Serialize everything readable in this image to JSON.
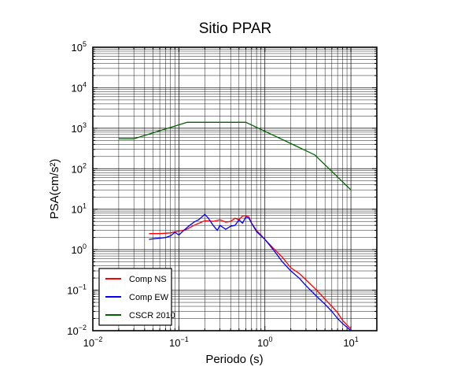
{
  "chart_data": {
    "type": "line",
    "title": "Sitio PPAR",
    "xlabel": "Periodo (s)",
    "ylabel": "PSA(cm/s²)",
    "xscale": "log",
    "yscale": "log",
    "xlim": [
      0.01,
      20
    ],
    "ylim": [
      0.01,
      100000
    ],
    "grid": true,
    "legend_position": "bottom-left",
    "x_ticks": [
      {
        "base": "10",
        "exp": "−2",
        "value": 0.01
      },
      {
        "base": "10",
        "exp": "−1",
        "value": 0.1
      },
      {
        "base": "10",
        "exp": "0",
        "value": 1
      },
      {
        "base": "10",
        "exp": "1",
        "value": 10
      }
    ],
    "y_ticks": [
      {
        "base": "10",
        "exp": "−2",
        "value": 0.01
      },
      {
        "base": "10",
        "exp": "−1",
        "value": 0.1
      },
      {
        "base": "10",
        "exp": "0",
        "value": 1
      },
      {
        "base": "10",
        "exp": "1",
        "value": 10
      },
      {
        "base": "10",
        "exp": "2",
        "value": 100
      },
      {
        "base": "10",
        "exp": "3",
        "value": 1000
      },
      {
        "base": "10",
        "exp": "4",
        "value": 10000
      },
      {
        "base": "10",
        "exp": "5",
        "value": 100000
      }
    ],
    "series": [
      {
        "name": "Comp NS",
        "color": "#ff0000",
        "x": [
          0.045,
          0.06,
          0.08,
          0.1,
          0.12,
          0.15,
          0.2,
          0.25,
          0.3,
          0.35,
          0.4,
          0.45,
          0.5,
          0.55,
          0.6,
          0.65,
          0.7,
          0.8,
          1.0,
          1.3,
          1.6,
          2.0,
          2.5,
          3.0,
          4.0,
          5.0,
          6.0,
          7.0,
          8.0,
          10.0
        ],
        "y": [
          2.5,
          2.5,
          2.6,
          2.9,
          3.1,
          4.0,
          5.2,
          5.0,
          5.5,
          4.8,
          5.0,
          6.0,
          5.5,
          6.8,
          7.0,
          6.5,
          4.5,
          3.0,
          1.8,
          1.0,
          0.65,
          0.36,
          0.26,
          0.18,
          0.1,
          0.06,
          0.04,
          0.028,
          0.018,
          0.011
        ]
      },
      {
        "name": "Comp EW",
        "color": "#0000ff",
        "x": [
          0.045,
          0.055,
          0.07,
          0.08,
          0.09,
          0.1,
          0.11,
          0.13,
          0.15,
          0.17,
          0.2,
          0.22,
          0.25,
          0.28,
          0.3,
          0.35,
          0.4,
          0.45,
          0.5,
          0.55,
          0.6,
          0.65,
          0.7,
          0.8,
          1.0,
          1.3,
          1.6,
          2.0,
          2.5,
          3.0,
          4.0,
          5.0,
          6.0,
          7.0,
          8.0,
          10.0
        ],
        "y": [
          1.8,
          1.9,
          2.0,
          2.2,
          2.7,
          2.3,
          2.8,
          3.8,
          4.8,
          5.5,
          7.5,
          6.0,
          4.0,
          3.0,
          4.0,
          3.2,
          3.8,
          4.0,
          5.5,
          4.5,
          6.5,
          6.0,
          4.5,
          2.8,
          1.8,
          0.9,
          0.5,
          0.3,
          0.2,
          0.13,
          0.07,
          0.045,
          0.03,
          0.02,
          0.015,
          0.01
        ]
      },
      {
        "name": "CSCR 2010",
        "color": "#006400",
        "x": [
          0.02,
          0.03,
          0.125,
          0.6,
          3.8,
          10.0
        ],
        "y": [
          550,
          550,
          1400,
          1400,
          220,
          30
        ]
      }
    ]
  }
}
